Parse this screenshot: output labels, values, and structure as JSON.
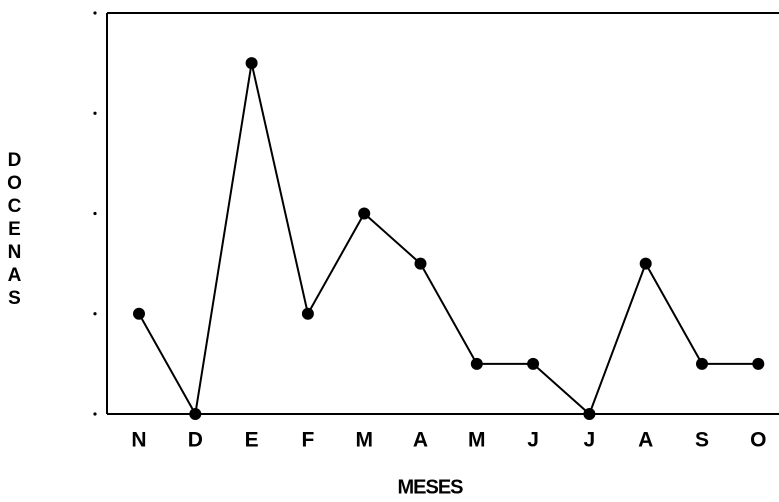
{
  "chart_data": {
    "type": "line",
    "categories": [
      "N",
      "D",
      "E",
      "F",
      "M",
      "A",
      "M",
      "J",
      "J",
      "A",
      "S",
      "O"
    ],
    "values": [
      2,
      0,
      7,
      2,
      4,
      3,
      1,
      1,
      0,
      3,
      1,
      1
    ],
    "color": "#000000",
    "ylabel": "DOCENAS",
    "xlabel": "MESES",
    "ylim": [
      0,
      8
    ],
    "yticks": [
      0,
      2,
      4,
      6,
      8
    ]
  }
}
